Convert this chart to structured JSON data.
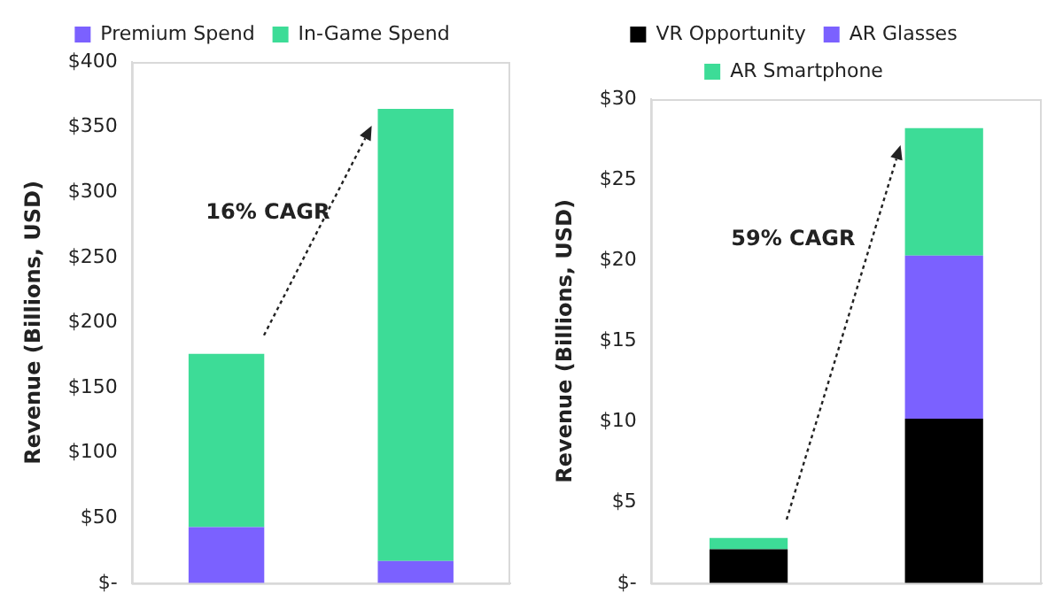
{
  "chart_data": [
    {
      "type": "bar",
      "stacked": true,
      "categories": [
        null,
        null
      ],
      "ylabel": "Revenue (Billions, USD)",
      "ylim": [
        0,
        400
      ],
      "yticks": [
        {
          "value": 0,
          "label": "$-"
        },
        {
          "value": 50,
          "label": "$50"
        },
        {
          "value": 100,
          "label": "$100"
        },
        {
          "value": 150,
          "label": "$150"
        },
        {
          "value": 200,
          "label": "$200"
        },
        {
          "value": 250,
          "label": "$250"
        },
        {
          "value": 300,
          "label": "$300"
        },
        {
          "value": 350,
          "label": "$350"
        },
        {
          "value": 400,
          "label": "$400"
        }
      ],
      "series": [
        {
          "name": "Premium Spend",
          "color": "#7b61ff",
          "values": [
            43,
            17
          ]
        },
        {
          "name": "In-Game Spend",
          "color": "#3ddc97",
          "values": [
            133,
            347
          ]
        }
      ],
      "legend": "top",
      "grid": false,
      "tick_labels": "y",
      "annotations": [
        "16% CAGR"
      ]
    },
    {
      "type": "bar",
      "stacked": true,
      "categories": [
        null,
        null
      ],
      "ylabel": "Revenue (Billions, USD)",
      "ylim": [
        0,
        30
      ],
      "yticks": [
        {
          "value": 0,
          "label": "$-"
        },
        {
          "value": 5,
          "label": "$5"
        },
        {
          "value": 10,
          "label": "$10"
        },
        {
          "value": 15,
          "label": "$15"
        },
        {
          "value": 20,
          "label": "$20"
        },
        {
          "value": 25,
          "label": "$25"
        },
        {
          "value": 30,
          "label": "$30"
        }
      ],
      "series": [
        {
          "name": "VR Opportunity",
          "color": "#000000",
          "values": [
            2.1,
            10.2
          ]
        },
        {
          "name": "AR Glasses",
          "color": "#7b61ff",
          "values": [
            0,
            10.1
          ]
        },
        {
          "name": "AR Smartphone",
          "color": "#3ddc97",
          "values": [
            0.7,
            7.9
          ]
        }
      ],
      "legend": "top",
      "grid": false,
      "tick_labels": "y",
      "annotations": [
        "59% CAGR"
      ]
    }
  ]
}
